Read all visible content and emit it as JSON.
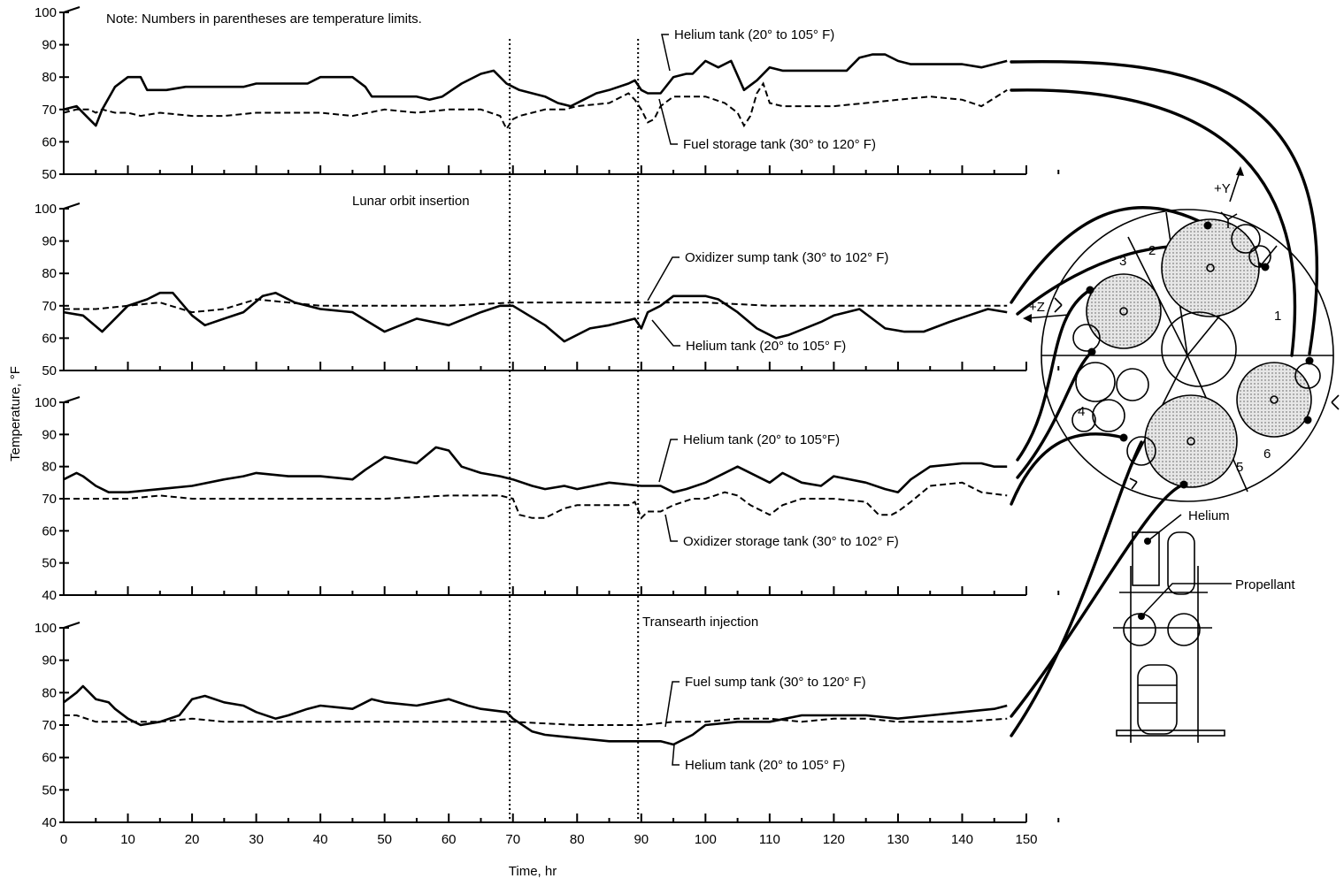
{
  "note": "Note:  Numbers in parentheses are temperature limits.",
  "ylabel": "Temperature, °F",
  "xlabel": "Time, hr",
  "x_ticks": [
    "0",
    "10",
    "20",
    "30",
    "40",
    "50",
    "60",
    "70",
    "80",
    "90",
    "100",
    "110",
    "120",
    "130",
    "140",
    "150"
  ],
  "events": [
    {
      "label": "Lunar orbit insertion",
      "x": 69.5
    },
    {
      "label": "Transearth injection",
      "x": 89.5
    }
  ],
  "diagram": {
    "axis_y": "+Y",
    "axis_z": "+Z",
    "sectors": [
      "1",
      "2",
      "3",
      "4",
      "5",
      "6"
    ],
    "helium_label": "Helium",
    "propellant_label": "Propellant"
  },
  "chart_data": [
    {
      "type": "line",
      "xlim": [
        0,
        150
      ],
      "ylim": [
        50,
        100
      ],
      "yticks": [
        50,
        60,
        70,
        80,
        90,
        100
      ],
      "series": [
        {
          "name": "Helium tank (20° to 105° F)",
          "style": "solid",
          "x": [
            0,
            2,
            4,
            5,
            6,
            8,
            10,
            12,
            13,
            16,
            19,
            20,
            21,
            25,
            28,
            30,
            33,
            38,
            40,
            45,
            47,
            48,
            50,
            53,
            55,
            57,
            59,
            62,
            65,
            67,
            69,
            71,
            73,
            75,
            77,
            79,
            81,
            83,
            85,
            88,
            89,
            90,
            91,
            93,
            95,
            97,
            98,
            100,
            102,
            104,
            106,
            108,
            110,
            112,
            115,
            118,
            120,
            122,
            124,
            126,
            128,
            130,
            132,
            135,
            140,
            143,
            147
          ],
          "y": [
            70,
            71,
            67,
            65,
            70,
            77,
            80,
            80,
            76,
            76,
            77,
            77,
            77,
            77,
            77,
            78,
            78,
            78,
            80,
            80,
            77,
            74,
            74,
            74,
            74,
            73,
            74,
            78,
            81,
            82,
            78,
            76,
            75,
            74,
            72,
            71,
            73,
            75,
            76,
            78,
            79,
            76,
            75,
            75,
            80,
            81,
            81,
            85,
            83,
            85,
            76,
            79,
            83,
            82,
            82,
            82,
            82,
            82,
            86,
            87,
            87,
            85,
            84,
            84,
            84,
            83,
            85
          ]
        },
        {
          "name": "Fuel storage tank (30° to 120° F)",
          "style": "dashed",
          "x": [
            0,
            2,
            4,
            5,
            6,
            8,
            10,
            12,
            15,
            20,
            25,
            30,
            35,
            40,
            45,
            50,
            55,
            60,
            65,
            68,
            69,
            70,
            71,
            73,
            75,
            78,
            80,
            85,
            88,
            89,
            90,
            91,
            92,
            93,
            95,
            97,
            100,
            103,
            105,
            106,
            107,
            108,
            109,
            110,
            112,
            115,
            120,
            125,
            130,
            135,
            140,
            143,
            147
          ],
          "y": [
            69,
            70,
            70,
            69,
            70,
            69,
            69,
            68,
            69,
            68,
            68,
            69,
            69,
            69,
            68,
            70,
            69,
            70,
            70,
            68,
            64,
            67,
            68,
            69,
            70,
            70,
            71,
            72,
            75,
            73,
            70,
            66,
            67,
            71,
            74,
            74,
            74,
            72,
            69,
            65,
            68,
            75,
            78,
            72,
            71,
            71,
            71,
            72,
            73,
            74,
            73,
            71,
            76
          ]
        }
      ]
    },
    {
      "type": "line",
      "xlim": [
        0,
        150
      ],
      "ylim": [
        50,
        100
      ],
      "yticks": [
        50,
        60,
        70,
        80,
        90,
        100
      ],
      "series": [
        {
          "name": "Oxidizer sump tank (30° to 102° F)",
          "style": "dashed",
          "x": [
            0,
            5,
            10,
            15,
            20,
            25,
            30,
            35,
            40,
            50,
            60,
            70,
            80,
            90,
            100,
            110,
            120,
            130,
            140,
            147
          ],
          "y": [
            69,
            69,
            70,
            71,
            68,
            69,
            72,
            71,
            70,
            70,
            70,
            71,
            71,
            71,
            71,
            70,
            70,
            70,
            70,
            70
          ]
        },
        {
          "name": "Helium tank (20° to 105° F)",
          "style": "solid",
          "x": [
            0,
            3,
            6,
            10,
            13,
            15,
            17,
            20,
            22,
            25,
            28,
            31,
            33,
            36,
            40,
            45,
            50,
            55,
            60,
            65,
            68,
            70,
            75,
            78,
            82,
            85,
            89,
            90,
            91,
            93,
            95,
            98,
            100,
            102,
            105,
            108,
            111,
            113,
            118,
            120,
            124,
            128,
            131,
            134,
            138,
            141,
            144,
            147
          ],
          "y": [
            68,
            67,
            62,
            70,
            72,
            74,
            74,
            67,
            64,
            66,
            68,
            73,
            74,
            71,
            69,
            68,
            62,
            66,
            64,
            68,
            70,
            70,
            64,
            59,
            63,
            64,
            66,
            63,
            68,
            70,
            73,
            73,
            73,
            72,
            68,
            63,
            60,
            61,
            65,
            67,
            69,
            63,
            62,
            62,
            65,
            67,
            69,
            68
          ]
        }
      ]
    },
    {
      "type": "line",
      "xlim": [
        0,
        150
      ],
      "ylim": [
        40,
        100
      ],
      "yticks": [
        40,
        50,
        60,
        70,
        80,
        90,
        100
      ],
      "series": [
        {
          "name": "Helium tank (20° to 105°F)",
          "style": "solid",
          "x": [
            0,
            2,
            3,
            5,
            7,
            10,
            15,
            20,
            25,
            28,
            30,
            35,
            40,
            45,
            47,
            50,
            55,
            58,
            60,
            62,
            65,
            68,
            70,
            73,
            75,
            78,
            80,
            85,
            90,
            93,
            95,
            97,
            100,
            103,
            105,
            108,
            110,
            112,
            115,
            118,
            120,
            125,
            128,
            130,
            132,
            135,
            140,
            143,
            145,
            147
          ],
          "y": [
            76,
            78,
            77,
            74,
            72,
            72,
            73,
            74,
            76,
            77,
            78,
            77,
            77,
            76,
            79,
            83,
            81,
            86,
            85,
            80,
            78,
            77,
            76,
            74,
            73,
            74,
            73,
            75,
            74,
            74,
            72,
            73,
            75,
            78,
            80,
            77,
            75,
            78,
            75,
            74,
            77,
            75,
            73,
            72,
            76,
            80,
            81,
            81,
            80,
            80
          ]
        },
        {
          "name": "Oxidizer storage tank (30° to 102° F)",
          "style": "dashed",
          "x": [
            0,
            5,
            10,
            15,
            20,
            30,
            40,
            50,
            60,
            68,
            70,
            71,
            73,
            75,
            78,
            80,
            88,
            89,
            90,
            91,
            93,
            95,
            98,
            100,
            103,
            105,
            107,
            110,
            112,
            115,
            120,
            125,
            127,
            129,
            130,
            132,
            135,
            140,
            143,
            147
          ],
          "y": [
            70,
            70,
            70,
            71,
            70,
            70,
            70,
            70,
            71,
            71,
            70,
            65,
            64,
            64,
            67,
            68,
            68,
            69,
            64,
            66,
            66,
            68,
            70,
            70,
            72,
            71,
            68,
            65,
            68,
            70,
            70,
            69,
            65,
            65,
            66,
            69,
            74,
            75,
            72,
            71
          ]
        }
      ]
    },
    {
      "type": "line",
      "xlim": [
        0,
        150
      ],
      "ylim": [
        40,
        100
      ],
      "yticks": [
        40,
        50,
        60,
        70,
        80,
        90,
        100
      ],
      "series": [
        {
          "name": "Fuel sump tank (30° to 120° F)",
          "style": "dashed",
          "x": [
            0,
            2,
            5,
            10,
            15,
            20,
            25,
            30,
            40,
            50,
            60,
            70,
            80,
            90,
            95,
            100,
            105,
            110,
            115,
            120,
            125,
            130,
            140,
            147
          ],
          "y": [
            73,
            73,
            71,
            71,
            71,
            72,
            71,
            71,
            71,
            71,
            71,
            71,
            70,
            70,
            71,
            71,
            72,
            72,
            71,
            72,
            72,
            71,
            71,
            72
          ]
        },
        {
          "name": "Helium tank (20° to 105° F)",
          "style": "solid",
          "x": [
            0,
            2,
            3,
            5,
            7,
            8,
            10,
            12,
            15,
            18,
            20,
            22,
            25,
            28,
            30,
            33,
            35,
            38,
            40,
            45,
            48,
            50,
            55,
            60,
            63,
            65,
            69,
            70,
            73,
            75,
            80,
            85,
            90,
            93,
            95,
            98,
            100,
            105,
            110,
            115,
            120,
            125,
            130,
            135,
            140,
            145,
            147
          ],
          "y": [
            77,
            80,
            82,
            78,
            77,
            75,
            72,
            70,
            71,
            73,
            78,
            79,
            77,
            76,
            74,
            72,
            73,
            75,
            76,
            75,
            78,
            77,
            76,
            78,
            76,
            75,
            74,
            72,
            68,
            67,
            66,
            65,
            65,
            65,
            64,
            67,
            70,
            71,
            71,
            73,
            73,
            73,
            72,
            73,
            74,
            75,
            76
          ]
        }
      ]
    }
  ]
}
